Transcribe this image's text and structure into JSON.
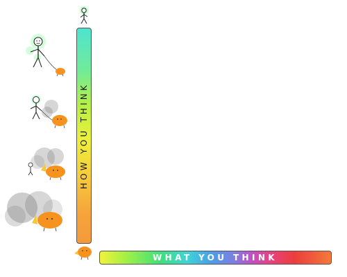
{
  "axes": {
    "vertical_label": "HOW YOU THINK",
    "horizontal_label": "WHAT YOU THINK"
  },
  "colors": {
    "vertical_gradient": [
      "#4fe3d0",
      "#b7f045",
      "#eef03a",
      "#f49a3c"
    ],
    "horizontal_gradient": [
      "#f2f23a",
      "#3fe07a",
      "#3fd3d8",
      "#7e7ee0",
      "#e8417e",
      "#ec3d3d",
      "#f47a3a"
    ],
    "creature": "#f6921e",
    "glow": "#7dff9a",
    "smoke": "#6e6e6e"
  }
}
